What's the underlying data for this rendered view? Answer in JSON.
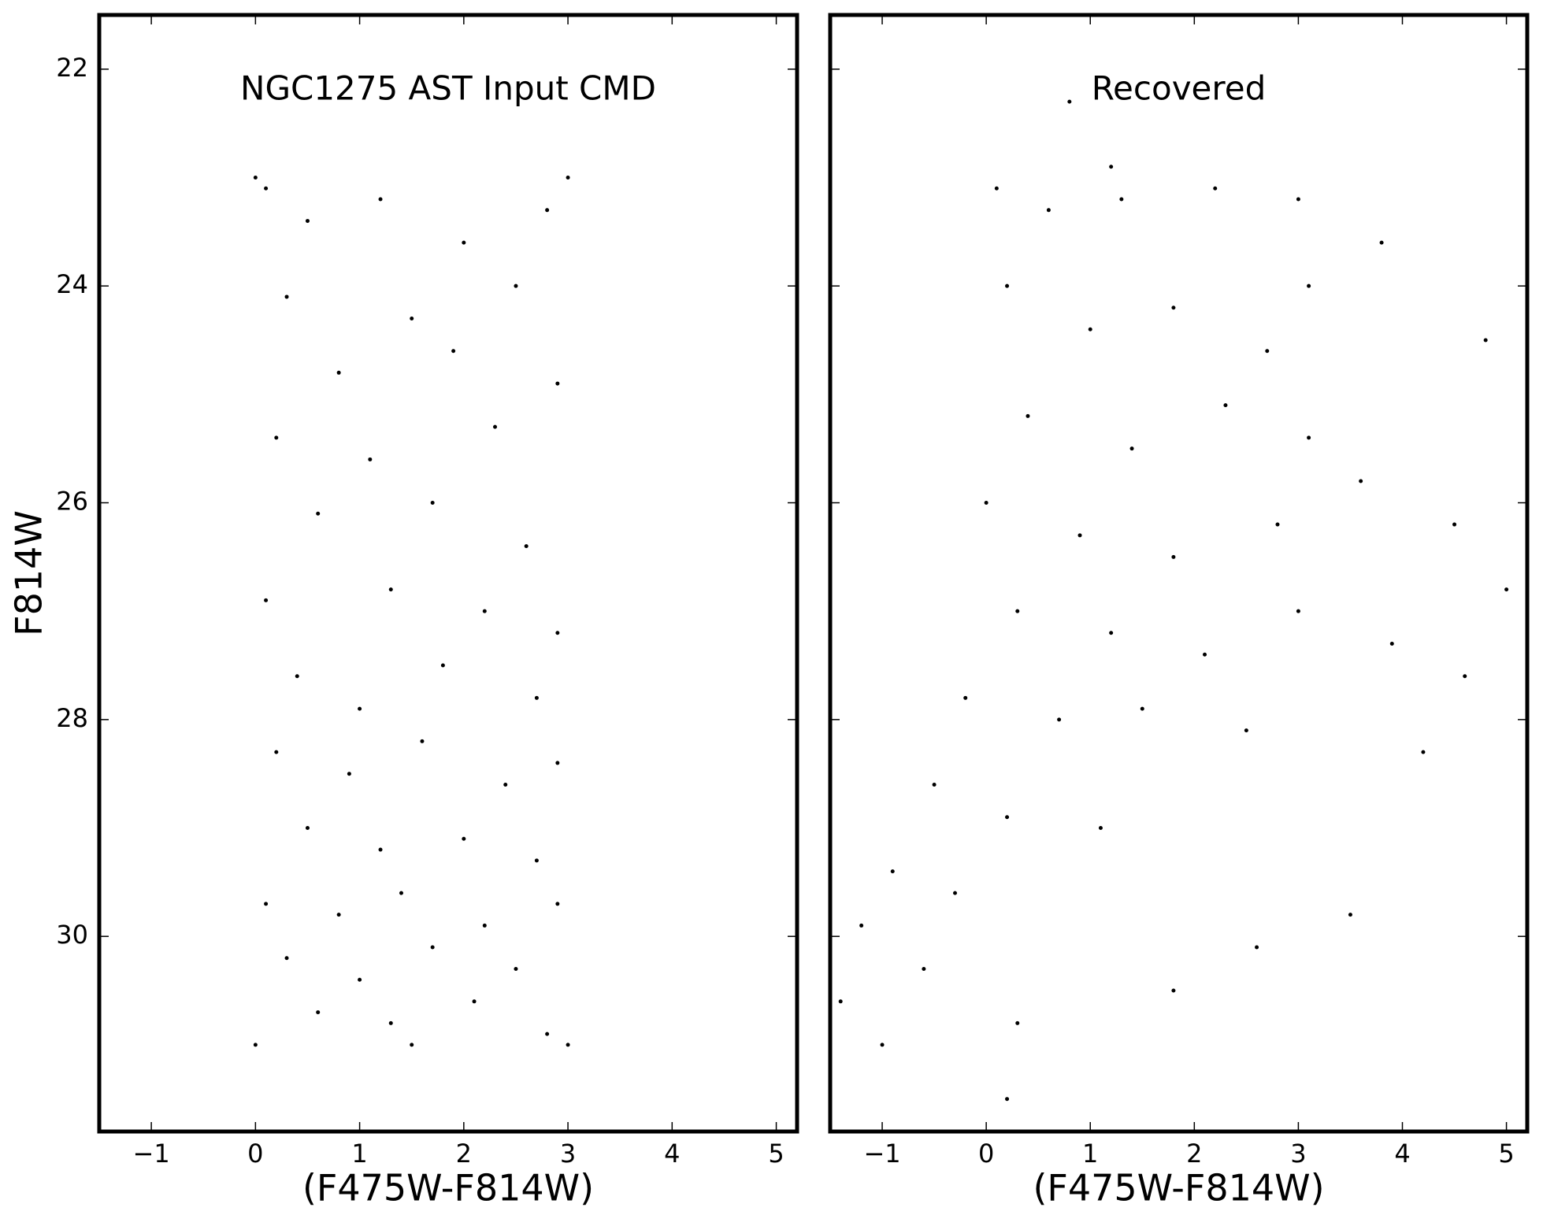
{
  "chart_data": [
    {
      "type": "scatter",
      "title": "NGC1275 AST Input CMD",
      "xlabel": "(F475W-F814W)",
      "ylabel": "F814W",
      "xlim": [
        -1.5,
        5.2
      ],
      "ylim": [
        31.8,
        21.5
      ],
      "xticks": [
        {
          "value": -1,
          "label": "−1"
        },
        0,
        1,
        2,
        3,
        4,
        5
      ],
      "yticks": [
        22,
        24,
        26,
        28,
        30
      ],
      "ytick_labels": true,
      "color": "#000000",
      "x": [
        0.1,
        0.5,
        1.2,
        2.0,
        2.8,
        0.3,
        1.5,
        2.5,
        0.8,
        1.9,
        2.9,
        0.2,
        1.1,
        2.3,
        0.6,
        1.7,
        2.6,
        0.1,
        1.3,
        2.2,
        2.9,
        0.4,
        1.0,
        1.8,
        2.7,
        0.2,
        0.9,
        1.6,
        2.4,
        2.9,
        0.5,
        1.2,
        2.0,
        2.7,
        0.1,
        0.8,
        1.4,
        2.2,
        2.9,
        0.3,
        1.0,
        1.7,
        2.5,
        0.6,
        1.3,
        2.1,
        2.8,
        0.0,
        1.5,
        3.0,
        0.0,
        3.0
      ],
      "y": [
        23.1,
        23.4,
        23.2,
        23.6,
        23.3,
        24.1,
        24.3,
        24.0,
        24.8,
        24.6,
        24.9,
        25.4,
        25.6,
        25.3,
        26.1,
        26.0,
        26.4,
        26.9,
        26.8,
        27.0,
        27.2,
        27.6,
        27.9,
        27.5,
        27.8,
        28.3,
        28.5,
        28.2,
        28.6,
        28.4,
        29.0,
        29.2,
        29.1,
        29.3,
        29.7,
        29.8,
        29.6,
        29.9,
        29.7,
        30.2,
        30.4,
        30.1,
        30.3,
        30.7,
        30.8,
        30.6,
        30.9,
        31.0,
        31.0,
        31.0,
        23.0,
        23.0
      ]
    },
    {
      "type": "scatter",
      "title": "Recovered",
      "xlabel": "(F475W-F814W)",
      "xlim": [
        -1.5,
        5.2
      ],
      "ylim": [
        31.8,
        21.5
      ],
      "xticks": [
        {
          "value": -1,
          "label": "−1"
        },
        0,
        1,
        2,
        3,
        4,
        5
      ],
      "yticks": [
        22,
        24,
        26,
        28,
        30
      ],
      "ytick_labels": false,
      "color": "#000000",
      "x": [
        0.1,
        0.6,
        1.3,
        2.2,
        3.0,
        0.2,
        1.0,
        1.8,
        2.7,
        3.1,
        0.4,
        1.4,
        2.3,
        3.1,
        0.0,
        0.9,
        1.8,
        2.8,
        3.6,
        4.5,
        5.0,
        0.3,
        1.2,
        2.1,
        3.0,
        3.9,
        4.6,
        -0.2,
        0.7,
        1.5,
        2.5,
        4.2,
        -0.5,
        0.2,
        1.1,
        -0.9,
        -0.3,
        -1.2,
        -0.6,
        -1.4,
        0.3,
        1.8,
        -1.0,
        0.2,
        0.8,
        1.2,
        3.8,
        4.8,
        3.5,
        2.6
      ],
      "y": [
        23.1,
        23.3,
        23.2,
        23.1,
        23.2,
        24.0,
        24.4,
        24.2,
        24.6,
        24.0,
        25.2,
        25.5,
        25.1,
        25.4,
        26.0,
        26.3,
        26.5,
        26.2,
        25.8,
        26.2,
        26.8,
        27.0,
        27.2,
        27.4,
        27.0,
        27.3,
        27.6,
        27.8,
        28.0,
        27.9,
        28.1,
        28.3,
        28.6,
        28.9,
        29.0,
        29.4,
        29.6,
        29.9,
        30.3,
        30.6,
        30.8,
        30.5,
        31.0,
        31.5,
        22.3,
        22.9,
        23.6,
        24.5,
        29.8,
        30.1
      ]
    }
  ]
}
